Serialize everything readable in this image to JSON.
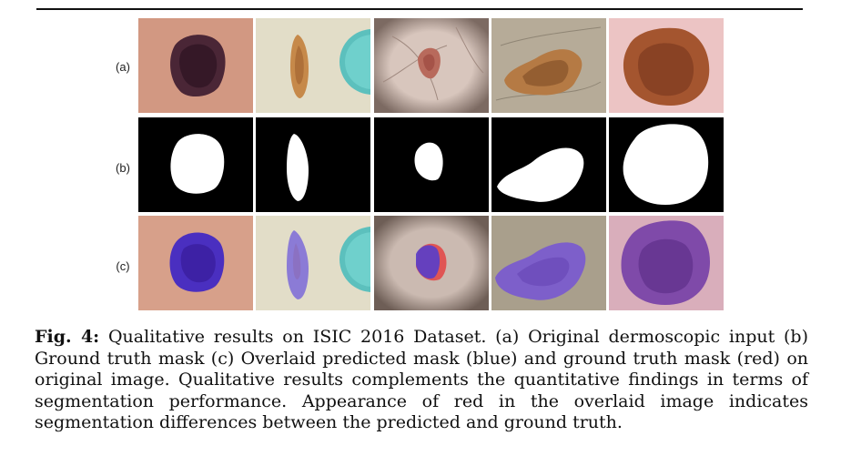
{
  "figure": {
    "row_labels": [
      "(a)",
      "(b)",
      "(c)"
    ],
    "rows": [
      {
        "id": "a",
        "description": "Original dermoscopic input"
      },
      {
        "id": "b",
        "description": "Ground truth mask"
      },
      {
        "id": "c",
        "description": "Overlaid predicted mask and ground truth mask"
      }
    ],
    "colors": {
      "predicted_mask": "#4a2fc0",
      "ground_truth_mask": "#e03a3a",
      "mask_foreground": "#ffffff",
      "mask_background": "#000000"
    }
  },
  "caption": {
    "label": "Fig. 4:",
    "text": "Qualitative results on ISIC 2016 Dataset. (a) Original dermoscopic input (b) Ground truth mask (c) Overlaid predicted mask (blue) and ground truth mask (red) on original image. Qualitative results complements the quantitative findings in terms of segmentation performance. Appearance of red in the overlaid image indicates segmentation differences between the predicted and ground truth."
  }
}
